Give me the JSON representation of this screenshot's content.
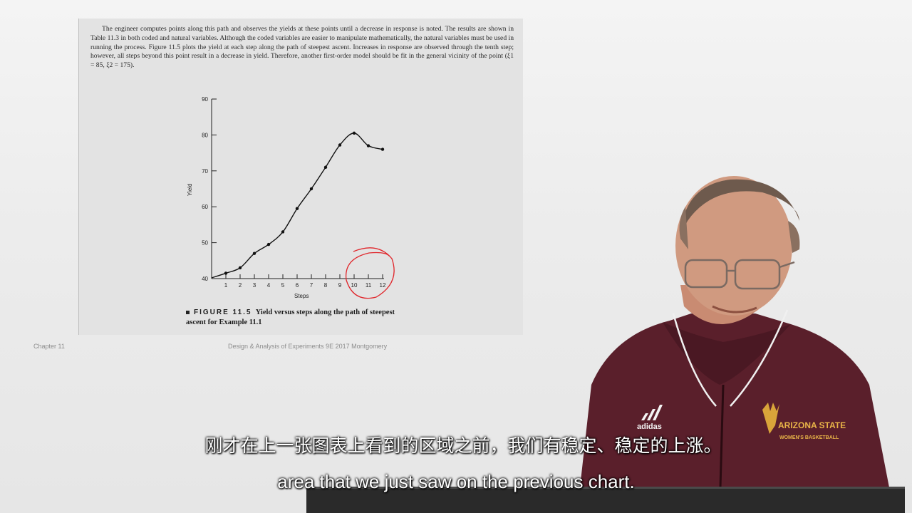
{
  "slide": {
    "paragraph": "The engineer computes points along this path and observes the yields at these points until a decrease in response is noted. The results are shown in Table 11.3 in both coded and natural variables. Although the coded variables are easier to manipulate mathematically, the natural variables must be used in running the process. Figure 11.5 plots the yield at each step along the path of steepest ascent. Increases in response are observed through the tenth step; however, all steps beyond this point result in a decrease in yield. Therefore, another first-order model should be fit in the general vicinity of the point (ξ1 = 85, ξ2 = 175).",
    "caption_label": "FIGURE 11.5",
    "caption_text": "Yield versus steps along the path of steepest ascent for Example 11.1",
    "footer_left": "Chapter 11",
    "footer_center": "Design & Analysis of Experiments 9E 2017 Montgomery"
  },
  "chart_data": {
    "type": "line",
    "xlabel": "Steps",
    "ylabel": "Yield",
    "x": [
      0,
      1,
      2,
      3,
      4,
      5,
      6,
      7,
      8,
      9,
      10,
      11,
      12
    ],
    "y": [
      40.2,
      41.5,
      43.0,
      47.0,
      49.5,
      53.0,
      59.5,
      65.0,
      71.0,
      77.2,
      80.5,
      77.0,
      76.0
    ],
    "xticks": [
      "1",
      "2",
      "3",
      "4",
      "5",
      "6",
      "7",
      "8",
      "9",
      "10",
      "11",
      "12"
    ],
    "yticks": [
      "40",
      "50",
      "60",
      "70",
      "80",
      "90"
    ],
    "ylim": [
      40,
      90
    ],
    "xlim": [
      0,
      12
    ],
    "grid": false,
    "annotation": "red hand-drawn circle around steps 10-12",
    "line_color": "#111111",
    "annotation_color": "#e0262b"
  },
  "subtitles": {
    "chinese": "刚才在上一张图表上看到的区域之前，我们有稳定、稳定的上涨。",
    "english": "area that we just saw on the previous chart."
  },
  "presenter": {
    "shirt_logo": "ARIZONA STATE",
    "shirt_sub": "WOMEN'S BASKETBALL",
    "brand": "adidas"
  }
}
